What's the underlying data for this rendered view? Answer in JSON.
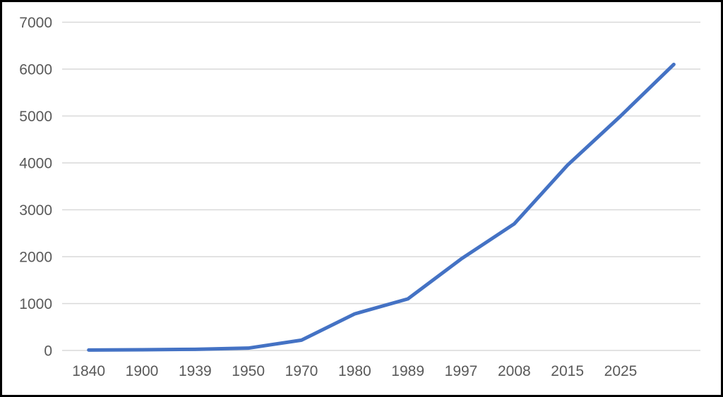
{
  "chart_data": {
    "type": "line",
    "title": "",
    "xlabel": "",
    "ylabel": "",
    "categories": [
      "1840",
      "1900",
      "1939",
      "1950",
      "1970",
      "1980",
      "1989",
      "1997",
      "2008",
      "2015",
      "2025",
      ""
    ],
    "values": [
      10,
      15,
      25,
      50,
      220,
      780,
      1100,
      1950,
      2700,
      3950,
      5000,
      6100
    ],
    "ylim": [
      0,
      7000
    ],
    "ytick_step": 1000,
    "ytick_labels": [
      "0",
      "1000",
      "2000",
      "3000",
      "4000",
      "5000",
      "6000",
      "7000"
    ],
    "grid": true,
    "legend_position": "none",
    "series_name": "values-over-time"
  },
  "style": {
    "line_color": "#4472C4",
    "gridline_color": "#D9D9D9",
    "label_color": "#595959",
    "background_color": "#ffffff",
    "frame_border_color": "#000000"
  }
}
